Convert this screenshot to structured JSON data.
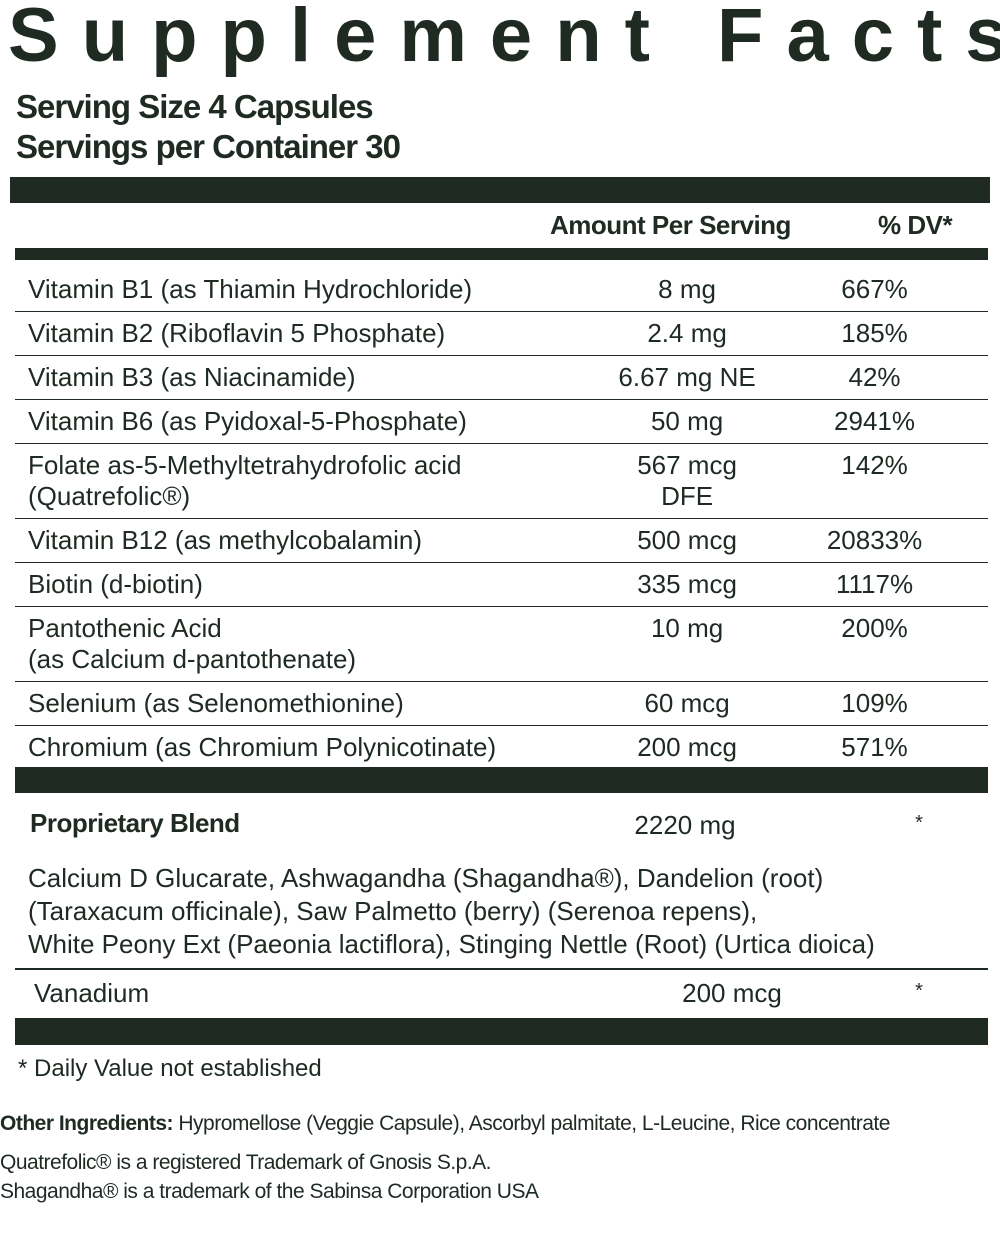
{
  "title": "Supplement Facts",
  "serving_size": "Serving Size 4 Capsules",
  "servings_per_container": "Servings per Container 30",
  "header": {
    "amount": "Amount Per Serving",
    "dv": "% DV*"
  },
  "rows": [
    {
      "name": "Vitamin B1 (as Thiamin Hydrochloride)",
      "amount": "8 mg",
      "dv": "667%"
    },
    {
      "name": "Vitamin B2 (Riboflavin 5 Phosphate)",
      "amount": "2.4 mg",
      "dv": "185%"
    },
    {
      "name": "Vitamin B3 (as Niacinamide)",
      "amount": "6.67 mg NE",
      "dv": "42%"
    },
    {
      "name": "Vitamin B6 (as Pyidoxal-5-Phosphate)",
      "amount": "50 mg",
      "dv": "2941%"
    },
    {
      "name": "Folate as-5-Methyltetrahydrofolic acid\n(Quatrefolic®)",
      "amount": "567 mcg DFE",
      "dv": "142%"
    },
    {
      "name": "Vitamin B12 (as methylcobalamin)",
      "amount": "500 mcg",
      "dv": "20833%"
    },
    {
      "name": "Biotin (d-biotin)",
      "amount": "335 mcg",
      "dv": "1117%"
    },
    {
      "name": "Pantothenic Acid\n(as Calcium d-pantothenate)",
      "amount": "10 mg",
      "dv": "200%"
    },
    {
      "name": "Selenium (as Selenomethionine)",
      "amount": "60 mcg",
      "dv": "109%"
    },
    {
      "name": "Chromium (as Chromium Polynicotinate)",
      "amount": "200 mcg",
      "dv": "571%"
    }
  ],
  "blend": {
    "name": "Proprietary Blend",
    "amount": "2220 mg",
    "dv": "*",
    "ingredients": [
      "Calcium D Glucarate, Ashwagandha (Shagandha®), Dandelion (root)",
      "(Taraxacum officinale), Saw Palmetto (berry) (Serenoa repens),",
      "White Peony Ext (Paeonia lactiflora), Stinging Nettle (Root) (Urtica dioica)"
    ]
  },
  "vanadium": {
    "name": "Vanadium",
    "amount": "200 mcg",
    "dv": "*"
  },
  "footnote": "* Daily Value not established",
  "other_ingredients": {
    "label": "Other Ingredients:",
    "text": "Hypromellose (Veggie Capsule), Ascorbyl palmitate, L-Leucine, Rice concentrate"
  },
  "trademarks": [
    "Quatrefolic® is a registered Trademark of Gnosis S.p.A.",
    "Shagandha® is a trademark of the Sabinsa Corporation USA"
  ]
}
